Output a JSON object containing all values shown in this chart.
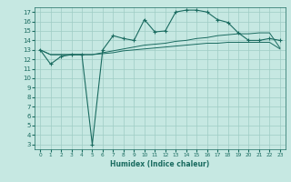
{
  "xlabel": "Humidex (Indice chaleur)",
  "ylabel": "",
  "bg_color": "#c6e8e2",
  "grid_color": "#9fccc4",
  "line_color": "#1a6b60",
  "xlim": [
    -0.5,
    23.5
  ],
  "ylim": [
    2.5,
    17.5
  ],
  "xticks": [
    0,
    1,
    2,
    3,
    4,
    5,
    6,
    7,
    8,
    9,
    10,
    11,
    12,
    13,
    14,
    15,
    16,
    17,
    18,
    19,
    20,
    21,
    22,
    23
  ],
  "yticks": [
    3,
    4,
    5,
    6,
    7,
    8,
    9,
    10,
    11,
    12,
    13,
    14,
    15,
    16,
    17
  ],
  "main_x": [
    0,
    1,
    2,
    3,
    4,
    5,
    6,
    7,
    8,
    9,
    10,
    11,
    12,
    13,
    14,
    15,
    16,
    17,
    18,
    19,
    20,
    21,
    22,
    23
  ],
  "main_y": [
    13.0,
    11.5,
    12.3,
    12.5,
    12.5,
    3.0,
    13.0,
    14.5,
    14.2,
    14.0,
    16.2,
    14.9,
    15.0,
    17.0,
    17.2,
    17.2,
    17.0,
    16.2,
    15.9,
    14.8,
    14.0,
    14.0,
    14.2,
    14.0
  ],
  "smooth1_x": [
    0,
    1,
    2,
    3,
    4,
    5,
    6,
    7,
    8,
    9,
    10,
    11,
    12,
    13,
    14,
    15,
    16,
    17,
    18,
    19,
    20,
    21,
    22,
    23
  ],
  "smooth1_y": [
    13.0,
    12.5,
    12.5,
    12.5,
    12.5,
    12.5,
    12.6,
    12.7,
    12.9,
    13.0,
    13.1,
    13.2,
    13.3,
    13.4,
    13.5,
    13.6,
    13.7,
    13.7,
    13.8,
    13.8,
    13.8,
    13.8,
    13.8,
    13.1
  ],
  "smooth2_x": [
    0,
    1,
    2,
    3,
    4,
    5,
    6,
    7,
    8,
    9,
    10,
    11,
    12,
    13,
    14,
    15,
    16,
    17,
    18,
    19,
    20,
    21,
    22,
    23
  ],
  "smooth2_y": [
    13.0,
    12.5,
    12.5,
    12.5,
    12.5,
    12.5,
    12.7,
    12.9,
    13.1,
    13.3,
    13.5,
    13.6,
    13.7,
    13.9,
    14.0,
    14.2,
    14.3,
    14.5,
    14.6,
    14.7,
    14.7,
    14.8,
    14.8,
    13.2
  ],
  "xlabel_fontsize": 5.5,
  "tick_fontsize_x": 4.2,
  "tick_fontsize_y": 5.0
}
